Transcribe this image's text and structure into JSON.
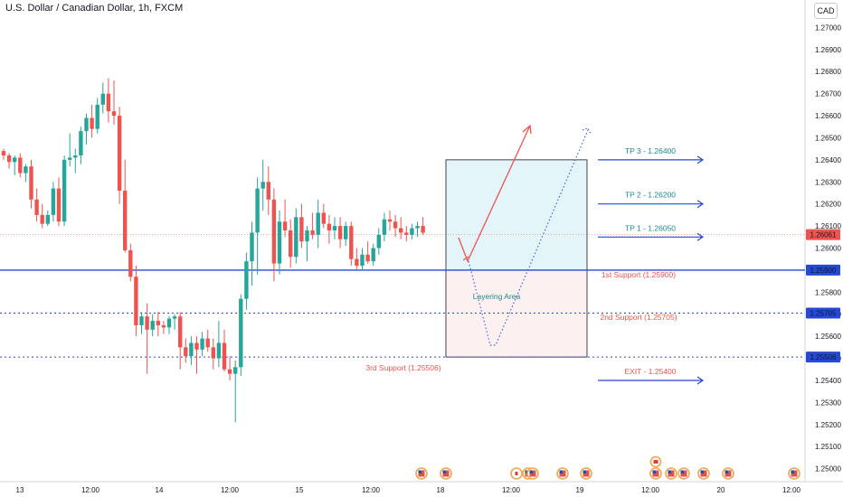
{
  "header": {
    "title": "U.S. Dollar / Canadian Dollar, 1h, FXCM",
    "currency": "CAD"
  },
  "colors": {
    "up": "#26a69a",
    "down": "#ef5350",
    "blue": "#2448d8",
    "teal_text": "#1b8a8a",
    "red_text": "#ef5350",
    "box_top_fill": "#e3f5f9",
    "box_bottom_fill": "#fdf0f0"
  },
  "chart_data": {
    "type": "candlestick",
    "ylim": [
      1.249,
      1.271
    ],
    "y_ticks": [
      "1.27000",
      "1.26900",
      "1.26800",
      "1.26700",
      "1.26600",
      "1.26500",
      "1.26400",
      "1.26300",
      "1.26200",
      "1.26100",
      "1.26000",
      "1.25800",
      "1.25700",
      "1.25600",
      "1.25500",
      "1.25400",
      "1.25300",
      "1.25200",
      "1.25100",
      "1.25000"
    ],
    "x_ticks": [
      "13",
      "12:00",
      "14",
      "12:00",
      "15",
      "12:00",
      "18",
      "12:00",
      "19",
      "12:00",
      "20",
      "12:00"
    ],
    "price_badges": [
      {
        "text": "1.26061",
        "color": "#ef5350"
      },
      {
        "text": "1.25900",
        "color": "#2448d8"
      },
      {
        "text": "1.25705",
        "color": "#2448d8"
      },
      {
        "text": "1.25506",
        "color": "#2448d8"
      }
    ],
    "candles": [
      [
        1.2644,
        1.2645,
        1.264,
        1.2642
      ],
      [
        1.2642,
        1.2643,
        1.2636,
        1.2639
      ],
      [
        1.2639,
        1.2642,
        1.2633,
        1.2641
      ],
      [
        1.2641,
        1.2643,
        1.2632,
        1.2634
      ],
      [
        1.2634,
        1.2638,
        1.263,
        1.2637
      ],
      [
        1.2637,
        1.264,
        1.2618,
        1.2622
      ],
      [
        1.2622,
        1.2627,
        1.2612,
        1.2615
      ],
      [
        1.2615,
        1.262,
        1.2609,
        1.2611
      ],
      [
        1.2611,
        1.2617,
        1.261,
        1.2615
      ],
      [
        1.2615,
        1.263,
        1.2612,
        1.2627
      ],
      [
        1.2627,
        1.2632,
        1.261,
        1.2612
      ],
      [
        1.2612,
        1.2642,
        1.261,
        1.264
      ],
      [
        1.264,
        1.2652,
        1.2637,
        1.2641
      ],
      [
        1.2641,
        1.2645,
        1.2634,
        1.2642
      ],
      [
        1.2642,
        1.2655,
        1.2638,
        1.2653
      ],
      [
        1.2653,
        1.2661,
        1.2647,
        1.2659
      ],
      [
        1.2659,
        1.2665,
        1.265,
        1.2654
      ],
      [
        1.2654,
        1.2668,
        1.2652,
        1.2665
      ],
      [
        1.2665,
        1.2675,
        1.2661,
        1.267
      ],
      [
        1.267,
        1.2677,
        1.2657,
        1.2662
      ],
      [
        1.2662,
        1.2676,
        1.2656,
        1.266
      ],
      [
        1.266,
        1.2664,
        1.262,
        1.2626
      ],
      [
        1.2626,
        1.264,
        1.2598,
        1.2599
      ],
      [
        1.2599,
        1.2602,
        1.2585,
        1.2587
      ],
      [
        1.2587,
        1.2592,
        1.256,
        1.2565
      ],
      [
        1.2565,
        1.2571,
        1.2561,
        1.2569
      ],
      [
        1.2569,
        1.2575,
        1.2543,
        1.2563
      ],
      [
        1.2563,
        1.257,
        1.256,
        1.2567
      ],
      [
        1.2567,
        1.2571,
        1.256,
        1.2565
      ],
      [
        1.2565,
        1.2567,
        1.2561,
        1.2564
      ],
      [
        1.2564,
        1.2569,
        1.2561,
        1.2568
      ],
      [
        1.2568,
        1.257,
        1.2563,
        1.2569
      ],
      [
        1.2569,
        1.2571,
        1.2545,
        1.2555
      ],
      [
        1.2555,
        1.2559,
        1.2548,
        1.2551
      ],
      [
        1.2551,
        1.256,
        1.2547,
        1.2557
      ],
      [
        1.2557,
        1.256,
        1.2543,
        1.2554
      ],
      [
        1.2554,
        1.2562,
        1.2551,
        1.2559
      ],
      [
        1.2559,
        1.2563,
        1.2553,
        1.2555
      ],
      [
        1.2555,
        1.2559,
        1.2545,
        1.255
      ],
      [
        1.255,
        1.2567,
        1.2546,
        1.2557
      ],
      [
        1.2557,
        1.2563,
        1.2544,
        1.2545
      ],
      [
        1.2545,
        1.2551,
        1.254,
        1.2543
      ],
      [
        1.2543,
        1.2549,
        1.2521,
        1.2546
      ],
      [
        1.2546,
        1.2579,
        1.2542,
        1.2577
      ],
      [
        1.2577,
        1.2598,
        1.2572,
        1.2594
      ],
      [
        1.2594,
        1.2612,
        1.2583,
        1.2607
      ],
      [
        1.2607,
        1.2632,
        1.2588,
        1.2627
      ],
      [
        1.2627,
        1.264,
        1.2617,
        1.263
      ],
      [
        1.263,
        1.2637,
        1.2615,
        1.2622
      ],
      [
        1.2622,
        1.2627,
        1.2585,
        1.2593
      ],
      [
        1.2593,
        1.2617,
        1.2588,
        1.2612
      ],
      [
        1.2612,
        1.2622,
        1.2605,
        1.2608
      ],
      [
        1.2608,
        1.2613,
        1.2591,
        1.2596
      ],
      [
        1.2596,
        1.2618,
        1.2593,
        1.2614
      ],
      [
        1.2614,
        1.262,
        1.26,
        1.2603
      ],
      [
        1.2603,
        1.261,
        1.2594,
        1.2608
      ],
      [
        1.2608,
        1.2616,
        1.2604,
        1.2606
      ],
      [
        1.2606,
        1.2622,
        1.26,
        1.2616
      ],
      [
        1.2616,
        1.262,
        1.2609,
        1.2611
      ],
      [
        1.2611,
        1.2615,
        1.2602,
        1.2608
      ],
      [
        1.2608,
        1.2614,
        1.2604,
        1.261
      ],
      [
        1.261,
        1.2614,
        1.26,
        1.2604
      ],
      [
        1.2604,
        1.2612,
        1.2601,
        1.261
      ],
      [
        1.261,
        1.2612,
        1.2592,
        1.2595
      ],
      [
        1.2595,
        1.26,
        1.259,
        1.2592
      ],
      [
        1.2592,
        1.26,
        1.259,
        1.2597
      ],
      [
        1.2597,
        1.2603,
        1.2593,
        1.2594
      ],
      [
        1.2594,
        1.2602,
        1.2592,
        1.26
      ],
      [
        1.26,
        1.2609,
        1.2597,
        1.2606
      ],
      [
        1.2606,
        1.2616,
        1.2603,
        1.2613
      ],
      [
        1.2613,
        1.2617,
        1.2608,
        1.2612
      ],
      [
        1.2612,
        1.2615,
        1.2605,
        1.2609
      ],
      [
        1.2609,
        1.2614,
        1.2604,
        1.2607
      ],
      [
        1.2607,
        1.261,
        1.2603,
        1.2606
      ],
      [
        1.2606,
        1.2611,
        1.2604,
        1.2609
      ],
      [
        1.2609,
        1.2612,
        1.2605,
        1.261
      ],
      [
        1.261,
        1.2614,
        1.2606,
        1.2607
      ]
    ],
    "plan": {
      "box_top": 1.264,
      "box_split": 1.259,
      "box_bottom": 1.25506,
      "layering_label": "Layering Area",
      "targets": [
        {
          "label": "TP 3 - 1.26400",
          "price": 1.264,
          "color": "#1b8a8a"
        },
        {
          "label": "TP 2 - 1.26200",
          "price": 1.262,
          "color": "#1b8a8a"
        },
        {
          "label": "TP 1 - 1.26050",
          "price": 1.2605,
          "color": "#1b8a8a"
        },
        {
          "label": "EXIT - 1.25400",
          "price": 1.254,
          "color": "#ef5350"
        }
      ],
      "supports": [
        {
          "label": "1st Support (1.25900)",
          "price": 1.259
        },
        {
          "label": "2nd Support (1.25705)",
          "price": 1.25705
        },
        {
          "label": "3rd Support (1.25506)",
          "price": 1.25506
        }
      ]
    }
  }
}
